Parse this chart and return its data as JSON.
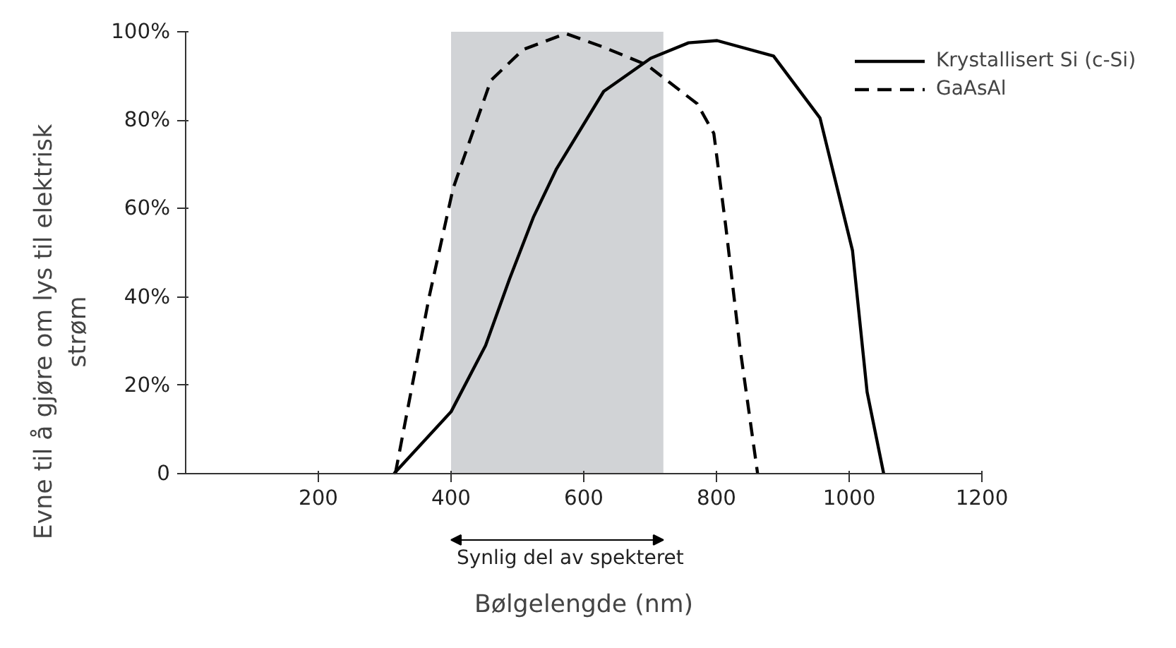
{
  "chart_data": {
    "type": "line",
    "xlabel": "Bølgelengde (nm)",
    "ylabel": "Evne til å gjøre om lys til elektrisk strøm",
    "xlim": [
      0,
      1200
    ],
    "ylim": [
      0,
      100
    ],
    "xticks": [
      200,
      400,
      600,
      800,
      1000,
      1200
    ],
    "yticks": [
      0,
      {
        "value": 20,
        "label": "20%"
      },
      {
        "value": 40,
        "label": "40%"
      },
      {
        "value": 60,
        "label": "60%"
      },
      {
        "value": 80,
        "label": "80%"
      },
      {
        "value": 100,
        "label": "100%"
      }
    ],
    "grid": false,
    "legend": "top right",
    "bands": [
      {
        "axis": "x",
        "from": 400,
        "to": 720,
        "color": "#d1d3d6"
      }
    ],
    "annotations": [
      "Synlig del av spekteret"
    ],
    "series": [
      {
        "name": "Krystallisert Si (c-Si)",
        "color": "#000000",
        "line_style": "solid",
        "x": [
          314,
          400,
          452,
          488,
          524,
          559,
          630,
          701,
          758,
          801,
          886,
          956,
          1005,
          1027,
          1052
        ],
        "values": [
          0,
          14,
          29,
          44,
          58,
          69,
          86.5,
          94,
          97.5,
          98,
          94.5,
          80.5,
          50.5,
          18.5,
          0
        ]
      },
      {
        "name": "GaAsAl",
        "color": "#000000",
        "line_style": "dashed",
        "x": [
          316,
          367,
          403,
          460,
          509,
          573,
          630,
          695,
          771,
          796,
          814,
          835,
          862
        ],
        "values": [
          0,
          40,
          64.5,
          89,
          96,
          99.6,
          96.5,
          92.5,
          83.7,
          77,
          56,
          29,
          0
        ]
      }
    ]
  }
}
